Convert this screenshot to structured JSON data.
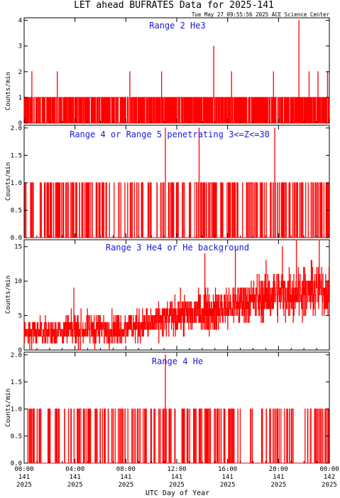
{
  "figure": {
    "title": "LET ahead BUFRATES Data for 2025-141",
    "timestamp": "Tue May 27 09:55:56 2025 ACE Science Center",
    "xlabel": "UTC Day of Year",
    "xticks": [
      {
        "time": "00:00",
        "day": "141",
        "year": "2025"
      },
      {
        "time": "04:00",
        "day": "141",
        "year": "2025"
      },
      {
        "time": "08:00",
        "day": "141",
        "year": "2025"
      },
      {
        "time": "12:00",
        "day": "141",
        "year": "2025"
      },
      {
        "time": "16:00",
        "day": "141",
        "year": "2025"
      },
      {
        "time": "20:00",
        "day": "141",
        "year": "2025"
      },
      {
        "time": "00:00",
        "day": "142",
        "year": "2025"
      }
    ]
  },
  "chart_data": [
    {
      "type": "line",
      "title": "Range 2 He3",
      "ylabel": "Counts/min",
      "ylim": [
        0,
        4.1
      ],
      "yticks": [
        "0",
        "1",
        "2",
        "3",
        "4"
      ],
      "ytick_values": [
        0,
        1,
        2,
        3,
        4
      ],
      "xlim_hours": [
        0,
        24
      ],
      "line_color": "#ff0000",
      "spikes": [
        {
          "hour": 0.6,
          "value": 2
        },
        {
          "hour": 2.6,
          "value": 2
        },
        {
          "hour": 8.3,
          "value": 2
        },
        {
          "hour": 10.8,
          "value": 2
        },
        {
          "hour": 14.9,
          "value": 3
        },
        {
          "hour": 16.3,
          "value": 2
        },
        {
          "hour": 19.6,
          "value": 2
        },
        {
          "hour": 21.6,
          "value": 4
        },
        {
          "hour": 22.4,
          "value": 2
        },
        {
          "hour": 23.1,
          "value": 2
        },
        {
          "hour": 23.85,
          "value": 2
        }
      ],
      "base_level": 1,
      "occupancy": 0.5
    },
    {
      "type": "line",
      "title": "Range 4 or Range 5 penetrating 3<=Z<=30",
      "ylabel": "Counts/min",
      "ylim": [
        0,
        2.05
      ],
      "yticks": [
        "0.0",
        "0.5",
        "1.0",
        "1.5",
        "2.0"
      ],
      "ytick_values": [
        0,
        0.5,
        1,
        1.5,
        2
      ],
      "xlim_hours": [
        0,
        24
      ],
      "line_color": "#ff0000",
      "spikes": [
        {
          "hour": 11.1,
          "value": 2
        },
        {
          "hour": 13.75,
          "value": 2
        },
        {
          "hour": 19.7,
          "value": 2
        }
      ],
      "base_level": 1,
      "occupancy": 0.22
    },
    {
      "type": "line",
      "title": "Range 3 He4 or He background",
      "ylabel": "Counts/min",
      "ylim": [
        0,
        16
      ],
      "yticks": [
        "0",
        "5",
        "10",
        "15"
      ],
      "ytick_values": [
        0,
        5,
        10,
        15
      ],
      "xlim_hours": [
        0,
        24
      ],
      "line_color": "#ff0000",
      "trend": [
        {
          "hour": 0,
          "value": 2.6
        },
        {
          "hour": 4,
          "value": 2.8
        },
        {
          "hour": 8,
          "value": 3.3
        },
        {
          "hour": 10,
          "value": 3.8
        },
        {
          "hour": 12,
          "value": 5.0
        },
        {
          "hour": 16,
          "value": 6.2
        },
        {
          "hour": 18,
          "value": 7.3
        },
        {
          "hour": 20,
          "value": 8.2
        },
        {
          "hour": 24,
          "value": 8.8
        }
      ],
      "peaks": [
        {
          "hour": 3.9,
          "value": 9
        },
        {
          "hour": 14.2,
          "value": 14
        },
        {
          "hour": 16.6,
          "value": 15
        },
        {
          "hour": 20.3,
          "value": 15
        },
        {
          "hour": 21.4,
          "value": 16
        },
        {
          "hour": 23.2,
          "value": 16
        }
      ]
    },
    {
      "type": "line",
      "title": "Range 4 He",
      "ylabel": "Counts/min",
      "ylim": [
        0,
        2.05
      ],
      "yticks": [
        "0.0",
        "0.5",
        "1.0",
        "1.5",
        "2.0"
      ],
      "ytick_values": [
        0,
        0.5,
        1,
        1.5,
        2
      ],
      "xlim_hours": [
        0,
        24
      ],
      "line_color": "#ff0000",
      "spikes": [
        {
          "hour": 11.1,
          "value": 2
        }
      ],
      "base_level": 1,
      "occupancy": 0.18
    }
  ]
}
